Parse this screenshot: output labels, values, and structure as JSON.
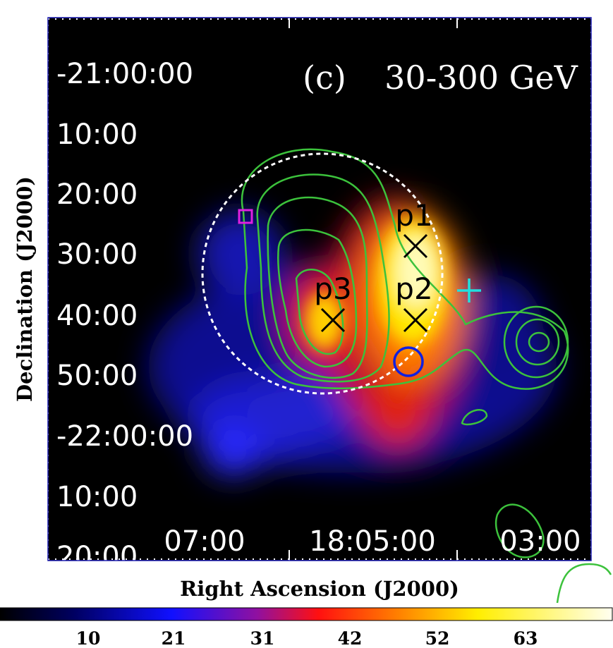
{
  "panel_label": "(c)",
  "energy_label": "30-300 GeV",
  "x_axis": {
    "label": "Right Ascension (J2000)",
    "ticks": [
      "07:00",
      "18:05:00",
      "03:00"
    ]
  },
  "y_axis": {
    "label": "Declination (J2000)",
    "ticks": [
      "-21:00:00",
      "10:00",
      "20:00",
      "30:00",
      "40:00",
      "50:00",
      "-22:00:00",
      "10:00",
      "20:00"
    ]
  },
  "colorbar": {
    "ticks": [
      "10",
      "21",
      "31",
      "42",
      "52",
      "63"
    ]
  },
  "sources": [
    "p1",
    "p2",
    "p3"
  ]
}
